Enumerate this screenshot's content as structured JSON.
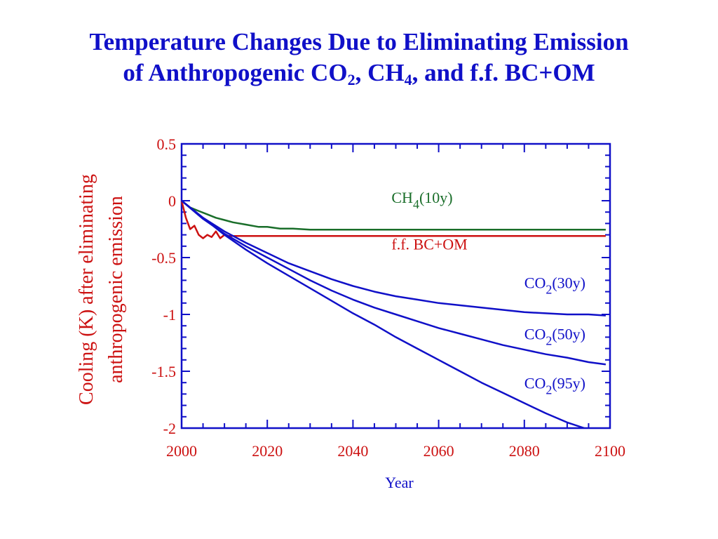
{
  "title": {
    "line1": "Temperature Changes Due to Eliminating Emission",
    "line2_prefix": "of Anthropogenic CO",
    "line2_sub1": "2",
    "line2_mid": ", CH",
    "line2_sub2": "4",
    "line2_suffix": ", and f.f. BC+OM"
  },
  "colors": {
    "title": "#1010c8",
    "axis": "#1010c8",
    "tick_labels": "#cc1111",
    "ylabel": "#cc1111",
    "xlabel": "#1010c8",
    "ch4": "#1a6e2a",
    "bcom": "#cc1111",
    "co2": "#1010c8"
  },
  "chart_data": {
    "type": "line",
    "xlabel": "Year",
    "ylabel_lines": [
      "Cooling (K) after eliminating",
      "anthropogenic emission"
    ],
    "xlim": [
      2000,
      2100
    ],
    "ylim": [
      -2,
      0.5
    ],
    "x_ticks": [
      2000,
      2020,
      2040,
      2060,
      2080,
      2100
    ],
    "y_ticks": [
      0.5,
      0,
      -0.5,
      -1,
      -1.5,
      -2
    ],
    "y_tick_labels": [
      "0.5",
      "0",
      "-0.5",
      "-1",
      "-1.5",
      "-2"
    ],
    "grid": false,
    "series": [
      {
        "name": "CH4(10y)",
        "label_main": "CH",
        "label_sub": "4",
        "label_tail": "(10y)",
        "color_key": "ch4",
        "x": [
          2000,
          2002,
          2004,
          2006,
          2008,
          2010,
          2012,
          2015,
          2018,
          2020,
          2023,
          2026,
          2030,
          2040,
          2060,
          2080,
          2099
        ],
        "y": [
          0,
          -0.06,
          -0.09,
          -0.12,
          -0.15,
          -0.17,
          -0.19,
          -0.21,
          -0.23,
          -0.23,
          -0.245,
          -0.245,
          -0.255,
          -0.255,
          -0.255,
          -0.255,
          -0.255
        ]
      },
      {
        "name": "f.f. BC+OM",
        "label_main": "f.f. BC+OM",
        "label_sub": "",
        "label_tail": "",
        "color_key": "bcom",
        "x": [
          2000,
          2001,
          2002,
          2003,
          2004,
          2005,
          2006,
          2007,
          2008,
          2009,
          2010,
          2011,
          2020,
          2040,
          2060,
          2080,
          2099
        ],
        "y": [
          0,
          -0.15,
          -0.25,
          -0.22,
          -0.3,
          -0.33,
          -0.3,
          -0.32,
          -0.27,
          -0.33,
          -0.3,
          -0.31,
          -0.31,
          -0.31,
          -0.31,
          -0.31,
          -0.31
        ]
      },
      {
        "name": "CO2(30y)",
        "label_main": "CO",
        "label_sub": "2",
        "label_tail": "(30y)",
        "color_key": "co2",
        "x": [
          2000,
          2005,
          2010,
          2015,
          2020,
          2025,
          2030,
          2035,
          2040,
          2045,
          2050,
          2055,
          2060,
          2065,
          2070,
          2075,
          2080,
          2085,
          2090,
          2095,
          2099
        ],
        "y": [
          0,
          -0.15,
          -0.27,
          -0.37,
          -0.46,
          -0.55,
          -0.62,
          -0.69,
          -0.75,
          -0.8,
          -0.84,
          -0.87,
          -0.9,
          -0.92,
          -0.94,
          -0.96,
          -0.98,
          -0.99,
          -1.0,
          -1.0,
          -1.01
        ]
      },
      {
        "name": "CO2(50y)",
        "label_main": "CO",
        "label_sub": "2",
        "label_tail": "(50y)",
        "color_key": "co2",
        "x": [
          2000,
          2005,
          2010,
          2015,
          2020,
          2025,
          2030,
          2035,
          2040,
          2045,
          2050,
          2055,
          2060,
          2065,
          2070,
          2075,
          2080,
          2085,
          2090,
          2095,
          2099
        ],
        "y": [
          0,
          -0.16,
          -0.29,
          -0.4,
          -0.5,
          -0.6,
          -0.7,
          -0.79,
          -0.87,
          -0.94,
          -1.0,
          -1.06,
          -1.12,
          -1.17,
          -1.22,
          -1.27,
          -1.31,
          -1.35,
          -1.38,
          -1.42,
          -1.44
        ]
      },
      {
        "name": "CO2(95y)",
        "label_main": "CO",
        "label_sub": "2",
        "label_tail": "(95y)",
        "color_key": "co2",
        "x": [
          2000,
          2005,
          2010,
          2015,
          2020,
          2025,
          2030,
          2035,
          2040,
          2045,
          2050,
          2055,
          2060,
          2065,
          2070,
          2075,
          2080,
          2085,
          2090,
          2094
        ],
        "y": [
          0,
          -0.15,
          -0.3,
          -0.43,
          -0.55,
          -0.66,
          -0.77,
          -0.88,
          -0.99,
          -1.09,
          -1.2,
          -1.3,
          -1.4,
          -1.5,
          -1.6,
          -1.69,
          -1.78,
          -1.87,
          -1.95,
          -2.0
        ]
      }
    ]
  }
}
